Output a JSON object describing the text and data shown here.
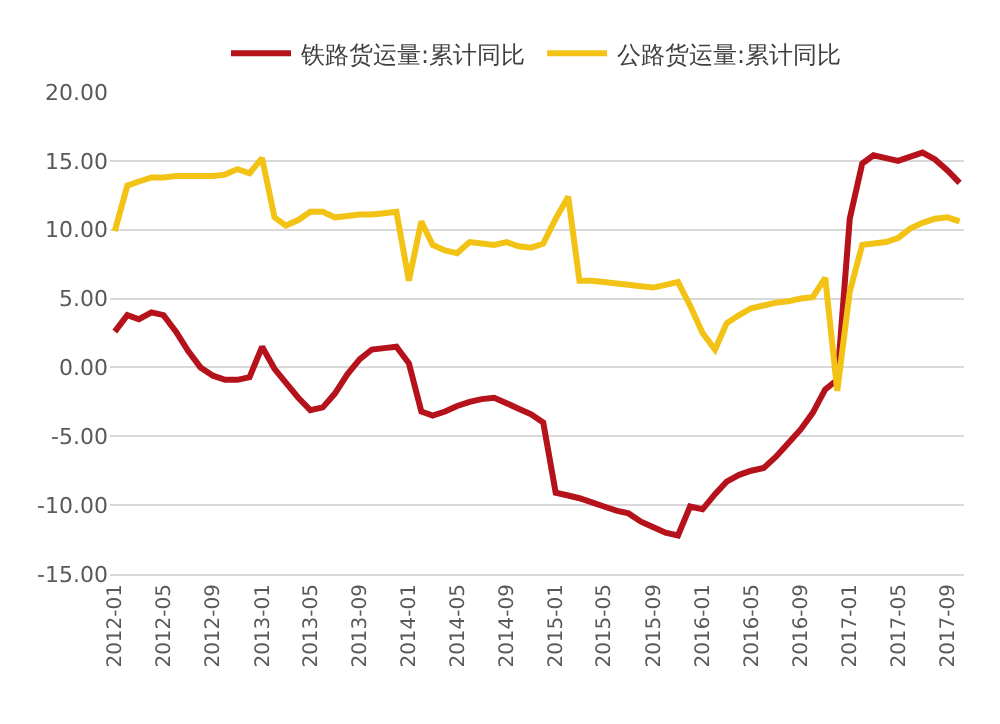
{
  "chart_data": {
    "type": "line",
    "x": [
      "2012-01",
      "2012-02",
      "2012-03",
      "2012-04",
      "2012-05",
      "2012-06",
      "2012-07",
      "2012-08",
      "2012-09",
      "2012-10",
      "2012-11",
      "2012-12",
      "2013-01",
      "2013-02",
      "2013-03",
      "2013-04",
      "2013-05",
      "2013-06",
      "2013-07",
      "2013-08",
      "2013-09",
      "2013-10",
      "2013-11",
      "2013-12",
      "2014-01",
      "2014-02",
      "2014-03",
      "2014-04",
      "2014-05",
      "2014-06",
      "2014-07",
      "2014-08",
      "2014-09",
      "2014-10",
      "2014-11",
      "2014-12",
      "2015-01",
      "2015-02",
      "2015-03",
      "2015-04",
      "2015-05",
      "2015-06",
      "2015-07",
      "2015-08",
      "2015-09",
      "2015-10",
      "2015-11",
      "2015-12",
      "2016-01",
      "2016-02",
      "2016-03",
      "2016-04",
      "2016-05",
      "2016-06",
      "2016-07",
      "2016-08",
      "2016-09",
      "2016-10",
      "2016-11",
      "2016-12",
      "2017-01",
      "2017-02",
      "2017-03",
      "2017-04",
      "2017-05",
      "2017-06",
      "2017-07",
      "2017-08",
      "2017-09",
      "2017-10"
    ],
    "series": [
      {
        "name": "铁路货运量:累计同比",
        "color": "#b5121b",
        "values": [
          2.6,
          3.8,
          3.5,
          4.0,
          3.8,
          2.6,
          1.2,
          0.0,
          -0.6,
          -0.9,
          -0.9,
          -0.7,
          1.5,
          -0.1,
          -1.1,
          -2.2,
          -3.1,
          -2.9,
          -1.9,
          -0.5,
          0.6,
          1.3,
          1.4,
          1.5,
          0.3,
          -3.2,
          -3.5,
          -3.2,
          -2.8,
          -2.5,
          -2.3,
          -2.2,
          -2.6,
          -3.0,
          -3.4,
          -4.0,
          -9.1,
          -9.3,
          -9.5,
          -9.8,
          -10.1,
          -10.4,
          -10.6,
          -11.2,
          -11.6,
          -12.0,
          -12.2,
          -10.1,
          -10.3,
          -9.2,
          -8.3,
          -7.8,
          -7.5,
          -7.3,
          -6.5,
          -5.5,
          -4.5,
          -3.3,
          -1.6,
          -0.9,
          10.8,
          14.8,
          15.4,
          15.2,
          15.0,
          15.3,
          15.6,
          15.1,
          14.3,
          13.4
        ]
      },
      {
        "name": "公路货运量:累计同比",
        "color": "#f2c314",
        "values": [
          9.9,
          13.2,
          13.5,
          13.8,
          13.8,
          13.9,
          13.9,
          13.9,
          13.9,
          14.0,
          14.4,
          14.1,
          15.2,
          10.9,
          10.3,
          10.7,
          11.3,
          11.3,
          10.9,
          11.0,
          11.1,
          11.1,
          11.2,
          11.3,
          6.3,
          10.6,
          8.9,
          8.5,
          8.3,
          9.1,
          9.0,
          8.9,
          9.1,
          8.8,
          8.7,
          9.0,
          10.8,
          12.4,
          6.3,
          6.3,
          6.2,
          6.1,
          6.0,
          5.9,
          5.8,
          6.0,
          6.2,
          4.5,
          2.5,
          1.3,
          3.2,
          3.8,
          4.3,
          4.5,
          4.7,
          4.8,
          5.0,
          5.1,
          6.5,
          -1.7,
          5.5,
          8.9,
          9.0,
          9.1,
          9.4,
          10.1,
          10.5,
          10.8,
          10.9,
          10.6
        ]
      }
    ],
    "xlim": [
      "2011-12-20",
      "2017-10-12"
    ],
    "xticks": [
      "2012-01",
      "2012-05",
      "2012-09",
      "2013-01",
      "2013-05",
      "2013-09",
      "2014-01",
      "2014-05",
      "2014-09",
      "2015-01",
      "2015-05",
      "2015-09",
      "2016-01",
      "2016-05",
      "2016-09",
      "2017-01",
      "2017-05",
      "2017-09"
    ],
    "ylim": [
      -15,
      20
    ],
    "yticks": [
      {
        "value": -15,
        "label": "-15.00"
      },
      {
        "value": -10,
        "label": "-10.00"
      },
      {
        "value": -5,
        "label": "-5.00"
      },
      {
        "value": 0,
        "label": "0.00"
      },
      {
        "value": 5,
        "label": "5.00"
      },
      {
        "value": 10,
        "label": "10.00"
      },
      {
        "value": 15,
        "label": "15.00"
      },
      {
        "value": 20,
        "label": "20.00"
      }
    ],
    "grid": "y",
    "legend": "top",
    "marker": "none",
    "line_style": "solid"
  }
}
